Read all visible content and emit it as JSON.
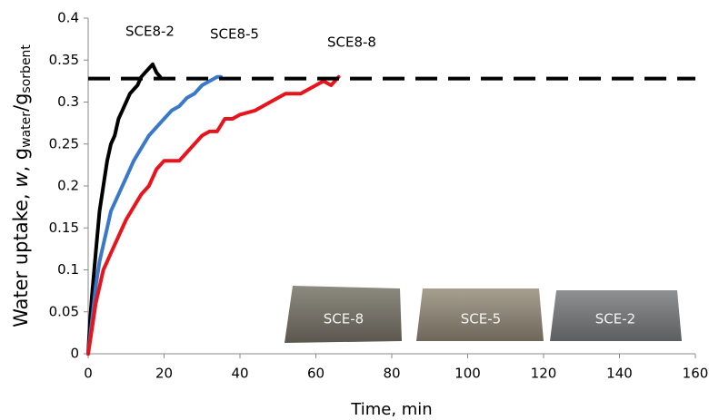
{
  "chart_data": {
    "type": "line",
    "ylabel_parts": [
      "Water uptake, ",
      "w",
      ", g",
      "water",
      "/g",
      "sorbent"
    ],
    "xlabel": "Time, min",
    "xlim": [
      0,
      160
    ],
    "xticks": [
      0,
      20,
      40,
      60,
      80,
      100,
      120,
      140,
      160
    ],
    "ylim": [
      0,
      0.4
    ],
    "yticks": [
      0,
      0.05,
      0.1,
      0.15,
      0.2,
      0.25,
      0.3,
      0.35,
      0.4
    ],
    "reference_line": 0.328,
    "series": [
      {
        "name": "SCE8-2",
        "color": "#000000",
        "x": [
          0,
          0.5,
          1,
          2,
          3,
          4,
          5,
          6,
          7,
          8,
          9,
          10,
          11,
          12,
          13,
          14,
          15,
          16,
          17,
          18,
          19
        ],
        "values": [
          0,
          0.04,
          0.07,
          0.12,
          0.17,
          0.2,
          0.23,
          0.25,
          0.26,
          0.28,
          0.29,
          0.3,
          0.31,
          0.315,
          0.32,
          0.33,
          0.335,
          0.34,
          0.345,
          0.335,
          0.33
        ]
      },
      {
        "name": "SCE8-5",
        "color": "#3a78c9",
        "x": [
          0,
          1,
          2,
          3,
          4,
          5,
          6,
          8,
          10,
          12,
          14,
          16,
          18,
          20,
          22,
          24,
          26,
          28,
          30,
          32,
          34,
          35
        ],
        "values": [
          0,
          0.04,
          0.08,
          0.11,
          0.13,
          0.15,
          0.17,
          0.19,
          0.21,
          0.23,
          0.245,
          0.26,
          0.27,
          0.28,
          0.29,
          0.295,
          0.305,
          0.31,
          0.32,
          0.325,
          0.33,
          0.33
        ]
      },
      {
        "name": "SCE8-8",
        "color": "#e8141b",
        "x": [
          0,
          1,
          2,
          3,
          4,
          5,
          6,
          8,
          10,
          12,
          14,
          16,
          18,
          20,
          22,
          24,
          26,
          28,
          30,
          32,
          34,
          36,
          38,
          40,
          44,
          48,
          52,
          56,
          60,
          62,
          64,
          66
        ],
        "values": [
          0,
          0.03,
          0.06,
          0.08,
          0.1,
          0.11,
          0.12,
          0.14,
          0.16,
          0.175,
          0.19,
          0.2,
          0.22,
          0.23,
          0.23,
          0.23,
          0.24,
          0.25,
          0.26,
          0.265,
          0.265,
          0.28,
          0.28,
          0.285,
          0.29,
          0.3,
          0.31,
          0.31,
          0.32,
          0.325,
          0.32,
          0.33
        ]
      }
    ],
    "photos": [
      "SCE-8",
      "SCE-5",
      "SCE-2"
    ]
  }
}
